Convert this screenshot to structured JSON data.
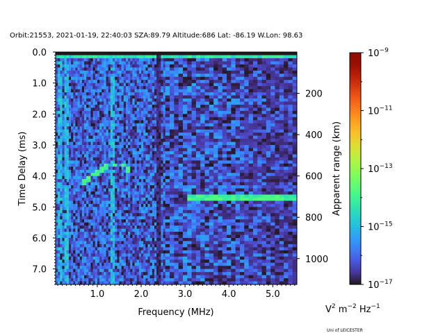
{
  "chart_data": {
    "type": "heatmap",
    "title": "Orbit:21553, 2021-01-19, 22:40:03 SZA:89.79 Altitude:686 Lat: -86.19 W.Lon: 98.63",
    "xlabel": "Frequency (MHz)",
    "ylabel": "Time Delay (ms)",
    "y2label": "Apparent range (km)",
    "xlim": [
      0.05,
      5.55
    ],
    "ylim": [
      7.5,
      0.0
    ],
    "xticks": [
      "1.0",
      "2.0",
      "3.0",
      "4.0",
      "5.0"
    ],
    "xtick_values": [
      1,
      2,
      3,
      4,
      5
    ],
    "yticks": [
      "0.0",
      "1.0",
      "2.0",
      "3.0",
      "4.0",
      "5.0",
      "6.0",
      "7.0"
    ],
    "ytick_values": [
      0,
      1,
      2,
      3,
      4,
      5,
      6,
      7
    ],
    "y2ticks": [
      "200",
      "400",
      "600",
      "800",
      "1000"
    ],
    "y2tick_values": [
      200,
      400,
      600,
      800,
      1000
    ],
    "km_per_ms": 150,
    "colorbar": {
      "scale": "log",
      "log_range": [
        -17,
        -9
      ],
      "colormap": "turbo",
      "tick_base": "10",
      "tick_exponents": [
        "−9",
        "−11",
        "−13",
        "−15",
        "−17"
      ],
      "tick_log_values": [
        -9,
        -11,
        -13,
        -15,
        -17
      ],
      "units_main": "V",
      "units_parts": [
        "2",
        " m",
        "−2",
        " Hz",
        "−1"
      ]
    },
    "background_log_level": -15.8,
    "features": {
      "bright_row_ms": 0.18,
      "bright_columns_mhz": [
        0.15,
        0.3,
        1.35
      ],
      "dark_column_mhz": 2.4,
      "echo_trace_ms": 4.7,
      "echo_trace_mhz_range": [
        3.05,
        5.5
      ],
      "arc_points": [
        [
          0.7,
          4.2
        ],
        [
          0.8,
          4.1
        ],
        [
          0.9,
          3.95
        ],
        [
          1.0,
          3.9
        ],
        [
          1.1,
          3.8
        ],
        [
          1.2,
          3.7
        ],
        [
          1.4,
          3.65
        ],
        [
          1.6,
          3.65
        ],
        [
          1.7,
          3.8
        ]
      ]
    },
    "credit": "Uni of LEICESTER"
  }
}
